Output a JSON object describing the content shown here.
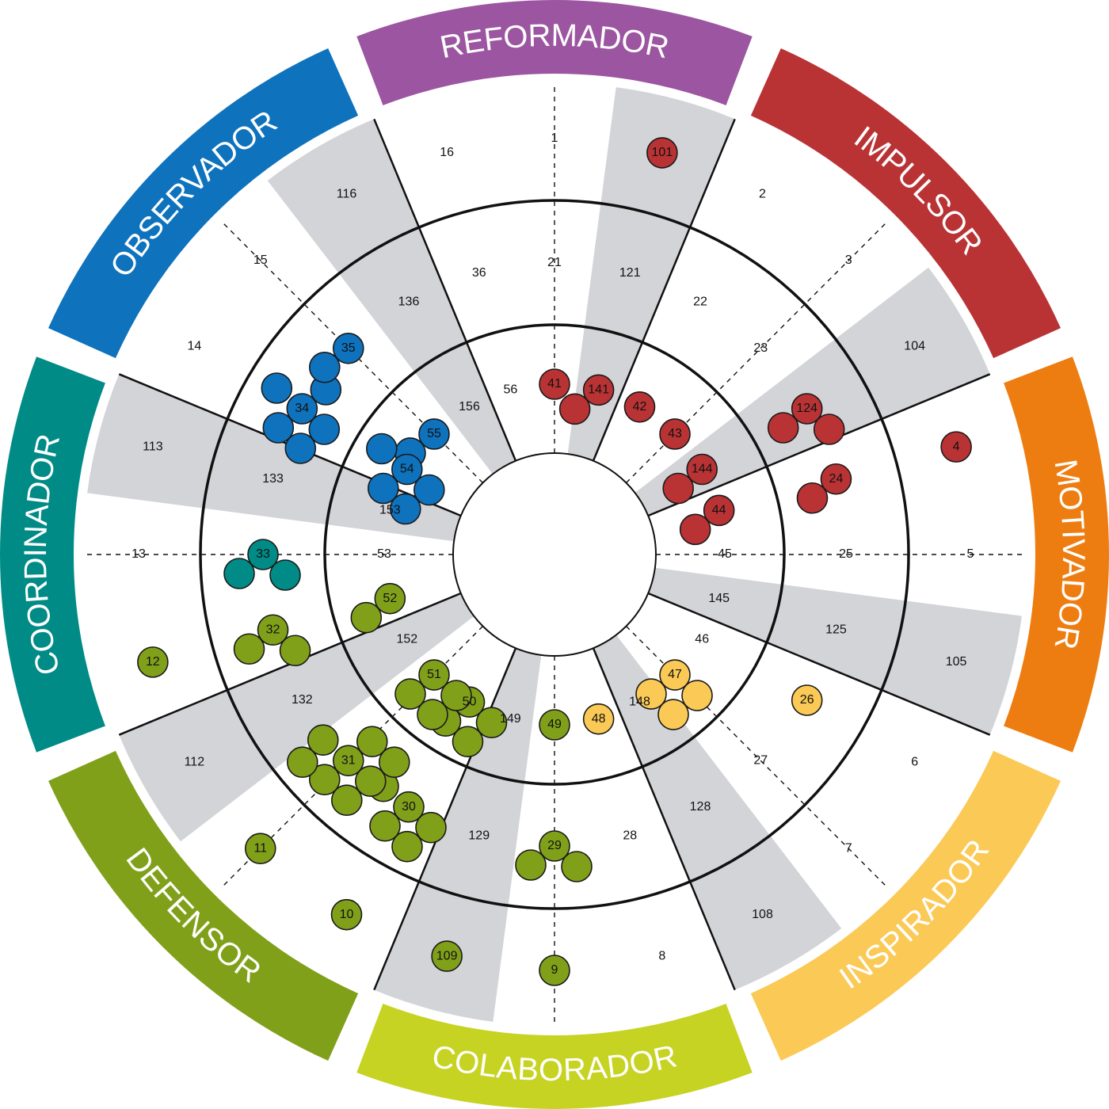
{
  "roles": [
    {
      "name": "REFORMADOR",
      "color": "#9c55a0"
    },
    {
      "name": "IMPULSOR",
      "color": "#b93335"
    },
    {
      "name": "MOTIVADOR",
      "color": "#ee7d11"
    },
    {
      "name": "INSPIRADOR",
      "color": "#fbc955"
    },
    {
      "name": "COLABORADOR",
      "color": "#c6d322"
    },
    {
      "name": "DEFENSOR",
      "color": "#81a01a"
    },
    {
      "name": "COORDINADOR",
      "color": "#008b86"
    },
    {
      "name": "OBSERVADOR",
      "color": "#0e72bd"
    }
  ],
  "cells": [
    {
      "label": "16",
      "col": 0,
      "ring": 0
    },
    {
      "label": "1",
      "col": 1,
      "ring": 0
    },
    {
      "label": "101",
      "col": 2,
      "ring": 0
    },
    {
      "label": "2",
      "col": 3,
      "ring": 0
    },
    {
      "label": "3",
      "col": 4,
      "ring": 0
    },
    {
      "label": "104",
      "col": 5,
      "ring": 0
    },
    {
      "label": "4",
      "col": 6,
      "ring": 0
    },
    {
      "label": "5",
      "col": 7,
      "ring": 0
    },
    {
      "label": "105",
      "col": 8,
      "ring": 0
    },
    {
      "label": "6",
      "col": 9,
      "ring": 0
    },
    {
      "label": "7",
      "col": 10,
      "ring": 0
    },
    {
      "label": "108",
      "col": 11,
      "ring": 0
    },
    {
      "label": "8",
      "col": 12,
      "ring": 0
    },
    {
      "label": "9",
      "col": 13,
      "ring": 0
    },
    {
      "label": "109",
      "col": 14,
      "ring": 0
    },
    {
      "label": "10",
      "col": 15,
      "ring": 0
    },
    {
      "label": "11",
      "col": 16,
      "ring": 0
    },
    {
      "label": "112",
      "col": 17,
      "ring": 0
    },
    {
      "label": "12",
      "col": 18,
      "ring": 0
    },
    {
      "label": "13",
      "col": 19,
      "ring": 0
    },
    {
      "label": "113",
      "col": 20,
      "ring": 0
    },
    {
      "label": "14",
      "col": 21,
      "ring": 0
    },
    {
      "label": "15",
      "col": 22,
      "ring": 0
    },
    {
      "label": "116",
      "col": 23,
      "ring": 0
    },
    {
      "label": "36",
      "col": 0,
      "ring": 1
    },
    {
      "label": "21",
      "col": 1,
      "ring": 1
    },
    {
      "label": "121",
      "col": 2,
      "ring": 1
    },
    {
      "label": "22",
      "col": 3,
      "ring": 1
    },
    {
      "label": "23",
      "col": 4,
      "ring": 1
    },
    {
      "label": "124",
      "col": 5,
      "ring": 1
    },
    {
      "label": "24",
      "col": 6,
      "ring": 1
    },
    {
      "label": "25",
      "col": 7,
      "ring": 1
    },
    {
      "label": "125",
      "col": 8,
      "ring": 1
    },
    {
      "label": "26",
      "col": 9,
      "ring": 1
    },
    {
      "label": "27",
      "col": 10,
      "ring": 1
    },
    {
      "label": "128",
      "col": 11,
      "ring": 1
    },
    {
      "label": "28",
      "col": 12,
      "ring": 1
    },
    {
      "label": "29",
      "col": 13,
      "ring": 1
    },
    {
      "label": "129",
      "col": 14,
      "ring": 1
    },
    {
      "label": "30",
      "col": 15,
      "ring": 1
    },
    {
      "label": "31",
      "col": 16,
      "ring": 1
    },
    {
      "label": "132",
      "col": 17,
      "ring": 1
    },
    {
      "label": "32",
      "col": 18,
      "ring": 1
    },
    {
      "label": "33",
      "col": 19,
      "ring": 1
    },
    {
      "label": "133",
      "col": 20,
      "ring": 1
    },
    {
      "label": "34",
      "col": 21,
      "ring": 1
    },
    {
      "label": "35",
      "col": 22,
      "ring": 1
    },
    {
      "label": "136",
      "col": 23,
      "ring": 1
    },
    {
      "label": "56",
      "col": 0,
      "ring": 2
    },
    {
      "label": "41",
      "col": 1,
      "ring": 2
    },
    {
      "label": "141",
      "col": 2,
      "ring": 2
    },
    {
      "label": "42",
      "col": 3,
      "ring": 2
    },
    {
      "label": "43",
      "col": 4,
      "ring": 2
    },
    {
      "label": "144",
      "col": 5,
      "ring": 2
    },
    {
      "label": "44",
      "col": 6,
      "ring": 2
    },
    {
      "label": "45",
      "col": 7,
      "ring": 2
    },
    {
      "label": "145",
      "col": 8,
      "ring": 2
    },
    {
      "label": "46",
      "col": 9,
      "ring": 2
    },
    {
      "label": "47",
      "col": 10,
      "ring": 2
    },
    {
      "label": "148",
      "col": 11,
      "ring": 2
    },
    {
      "label": "48",
      "col": 12,
      "ring": 2
    },
    {
      "label": "49",
      "col": 13,
      "ring": 2
    },
    {
      "label": "149",
      "col": 14,
      "ring": 2
    },
    {
      "label": "50",
      "col": 15,
      "ring": 2
    },
    {
      "label": "51",
      "col": 16,
      "ring": 2
    },
    {
      "label": "152",
      "col": 17,
      "ring": 2
    },
    {
      "label": "52",
      "col": 18,
      "ring": 2
    },
    {
      "label": "53",
      "col": 19,
      "ring": 2
    },
    {
      "label": "153",
      "col": 20,
      "ring": 2
    },
    {
      "label": "54",
      "col": 21,
      "ring": 2
    },
    {
      "label": "55",
      "col": 22,
      "ring": 2
    },
    {
      "label": "156",
      "col": 23,
      "ring": 2
    }
  ],
  "markers": [
    {
      "cell": "101",
      "role": 1,
      "count": 1
    },
    {
      "cell": "41",
      "role": 1,
      "count": 1
    },
    {
      "cell": "141",
      "role": 1,
      "count": 2
    },
    {
      "cell": "42",
      "role": 1,
      "count": 1
    },
    {
      "cell": "43",
      "role": 1,
      "count": 1
    },
    {
      "cell": "124",
      "role": 1,
      "count": 3
    },
    {
      "cell": "24",
      "role": 1,
      "count": 2
    },
    {
      "cell": "4",
      "role": 1,
      "count": 1
    },
    {
      "cell": "144",
      "role": 1,
      "count": 2
    },
    {
      "cell": "44",
      "role": 1,
      "count": 2
    },
    {
      "cell": "47",
      "role": 3,
      "count": 4
    },
    {
      "cell": "48",
      "role": 3,
      "count": 1
    },
    {
      "cell": "26",
      "role": 3,
      "count": 1
    },
    {
      "cell": "49",
      "role": 5,
      "count": 1
    },
    {
      "cell": "29",
      "role": 5,
      "count": 3
    },
    {
      "cell": "9",
      "role": 5,
      "count": 1
    },
    {
      "cell": "109",
      "role": 5,
      "count": 1
    },
    {
      "cell": "10",
      "role": 5,
      "count": 1
    },
    {
      "cell": "11",
      "role": 5,
      "count": 1
    },
    {
      "cell": "12",
      "role": 5,
      "count": 1
    },
    {
      "cell": "30",
      "role": 5,
      "count": 5
    },
    {
      "cell": "31",
      "role": 5,
      "count": 8
    },
    {
      "cell": "50",
      "role": 5,
      "count": 4
    },
    {
      "cell": "51",
      "role": 5,
      "count": 4
    },
    {
      "cell": "52",
      "role": 5,
      "count": 2
    },
    {
      "cell": "32",
      "role": 5,
      "count": 3
    },
    {
      "cell": "33",
      "role": 6,
      "count": 3
    },
    {
      "cell": "34",
      "role": 7,
      "count": 6
    },
    {
      "cell": "35",
      "role": 7,
      "count": 2
    },
    {
      "cell": "55",
      "role": 7,
      "count": 2
    },
    {
      "cell": "54",
      "role": 7,
      "count": 5
    }
  ]
}
